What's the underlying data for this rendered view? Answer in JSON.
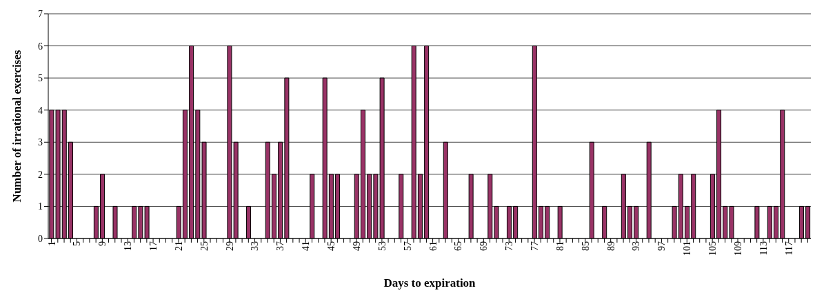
{
  "chart_data": {
    "type": "bar",
    "xlabel": "Days to expiration",
    "ylabel": "Number of irrational exercises",
    "categories": [
      "1",
      null,
      null,
      null,
      "5",
      null,
      null,
      null,
      "9",
      null,
      null,
      null,
      "13",
      null,
      null,
      null,
      "17",
      null,
      null,
      null,
      "21",
      null,
      null,
      null,
      "25",
      null,
      null,
      null,
      "29",
      null,
      null,
      null,
      "33",
      null,
      null,
      null,
      "37",
      null,
      null,
      null,
      "41",
      null,
      null,
      null,
      "45",
      null,
      null,
      null,
      "49",
      null,
      null,
      null,
      "53",
      null,
      null,
      null,
      "57",
      null,
      null,
      null,
      "61",
      null,
      null,
      null,
      "65",
      null,
      null,
      null,
      "69",
      null,
      null,
      null,
      "73",
      null,
      null,
      null,
      "77",
      null,
      null,
      null,
      "81",
      null,
      null,
      null,
      "85",
      null,
      null,
      null,
      "89",
      null,
      null,
      null,
      "93",
      null,
      null,
      null,
      "97",
      null,
      null,
      null,
      "101",
      null,
      null,
      null,
      "105",
      null,
      null,
      null,
      "109",
      null,
      null,
      null,
      "113",
      null,
      null,
      null,
      "117",
      null,
      null,
      null
    ],
    "values": [
      4,
      4,
      4,
      3,
      0,
      0,
      0,
      1,
      2,
      0,
      1,
      0,
      0,
      1,
      1,
      1,
      0,
      0,
      0,
      0,
      1,
      4,
      6,
      4,
      3,
      0,
      0,
      0,
      6,
      3,
      0,
      1,
      0,
      0,
      3,
      2,
      3,
      5,
      0,
      0,
      0,
      2,
      0,
      5,
      2,
      2,
      0,
      0,
      2,
      4,
      2,
      2,
      5,
      0,
      0,
      2,
      0,
      6,
      2,
      6,
      0,
      0,
      3,
      0,
      0,
      0,
      2,
      0,
      0,
      2,
      1,
      0,
      1,
      1,
      0,
      0,
      6,
      1,
      1,
      0,
      1,
      0,
      0,
      0,
      0,
      3,
      0,
      1,
      0,
      0,
      2,
      1,
      1,
      0,
      3,
      0,
      0,
      0,
      1,
      2,
      1,
      2,
      0,
      0,
      2,
      4,
      1,
      1,
      0,
      0,
      0,
      1,
      0,
      1,
      1,
      4,
      0,
      0,
      1,
      1
    ],
    "color": "#993366",
    "ylim": [
      0,
      7
    ],
    "yticks": [
      0,
      1,
      2,
      3,
      4,
      5,
      6,
      7
    ],
    "grid": "y",
    "legend": false
  }
}
